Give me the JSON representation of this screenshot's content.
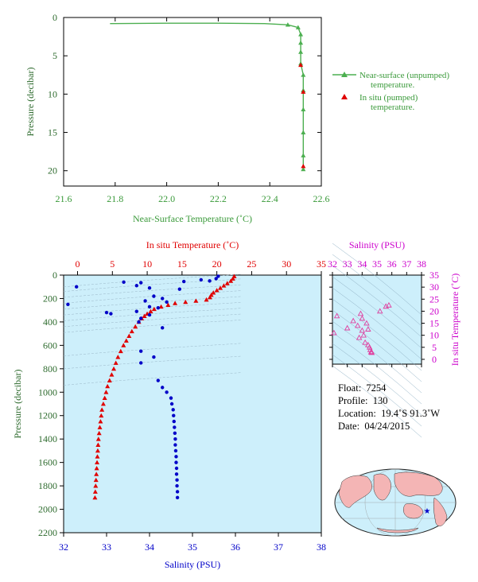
{
  "chart_data": [
    {
      "type": "line",
      "xlabel": "Near-Surface Temperature (˚C)",
      "ylabel": "Pressure (decibar)",
      "xlim": [
        21.6,
        22.6
      ],
      "ylim": [
        22,
        0
      ],
      "x_ticks": [
        "21.6",
        "21.8",
        "22.0",
        "22.2",
        "22.4",
        "22.6"
      ],
      "y_ticks": [
        "0",
        "5",
        "10",
        "15",
        "20"
      ],
      "grid": false,
      "legend_position": "right",
      "series": [
        {
          "name": "Near-surface (unpumped) temperature.",
          "color": "#4caf50",
          "marker": "triangle",
          "points": [
            [
              21.78,
              0.8
            ],
            [
              22.0,
              0.75
            ],
            [
              22.2,
              0.75
            ],
            [
              22.38,
              0.8
            ],
            [
              22.47,
              0.95
            ],
            [
              22.51,
              1.3
            ],
            [
              22.52,
              2.2
            ],
            [
              22.52,
              3.3
            ],
            [
              22.52,
              4.5
            ],
            [
              22.52,
              6.0
            ],
            [
              22.53,
              7.5
            ],
            [
              22.53,
              9.5
            ],
            [
              22.53,
              12.0
            ],
            [
              22.53,
              15.0
            ],
            [
              22.53,
              18.0
            ],
            [
              22.53,
              19.8
            ]
          ]
        },
        {
          "name": "In situ (pumped) temperature.",
          "color": "#e00000",
          "marker": "triangle",
          "points": [
            [
              22.52,
              6.2
            ],
            [
              22.53,
              9.7
            ],
            [
              22.53,
              19.4
            ]
          ]
        }
      ]
    },
    {
      "type": "scatter",
      "xlabel_top": "In situ Temperature (˚C)",
      "xlabel_bottom": "Salinity (PSU)",
      "ylabel": "Pressure (decibar)",
      "temp_lim": [
        -2,
        35
      ],
      "sal_lim": [
        32,
        38
      ],
      "ylim": [
        2200,
        0
      ],
      "temp_ticks": [
        "0",
        "5",
        "10",
        "15",
        "20",
        "25",
        "30",
        "35"
      ],
      "sal_ticks": [
        "32",
        "33",
        "34",
        "35",
        "36",
        "37",
        "38"
      ],
      "y_ticks": [
        "0",
        "200",
        "400",
        "600",
        "800",
        "1000",
        "1200",
        "1400",
        "1600",
        "1800",
        "2000",
        "2200"
      ],
      "temperature": {
        "color": "#e00000",
        "points": [
          [
            22.5,
            10
          ],
          [
            22.3,
            30
          ],
          [
            22.0,
            50
          ],
          [
            21.5,
            70
          ],
          [
            21.0,
            90
          ],
          [
            20.5,
            110
          ],
          [
            20.0,
            130
          ],
          [
            19.5,
            150
          ],
          [
            19.2,
            170
          ],
          [
            19.0,
            190
          ],
          [
            18.5,
            210
          ],
          [
            17.0,
            220
          ],
          [
            15.5,
            230
          ],
          [
            14.0,
            240
          ],
          [
            13.0,
            255
          ],
          [
            12.0,
            270
          ],
          [
            11.0,
            290
          ],
          [
            10.5,
            310
          ],
          [
            10.0,
            330
          ],
          [
            9.6,
            350
          ],
          [
            9.2,
            370
          ],
          [
            8.8,
            400
          ],
          [
            8.3,
            440
          ],
          [
            7.8,
            480
          ],
          [
            7.4,
            520
          ],
          [
            7.0,
            560
          ],
          [
            6.6,
            600
          ],
          [
            6.2,
            650
          ],
          [
            5.8,
            700
          ],
          [
            5.5,
            750
          ],
          [
            5.2,
            800
          ],
          [
            4.9,
            850
          ],
          [
            4.6,
            900
          ],
          [
            4.3,
            950
          ],
          [
            4.1,
            1000
          ],
          [
            3.9,
            1050
          ],
          [
            3.7,
            1100
          ],
          [
            3.5,
            1150
          ],
          [
            3.4,
            1200
          ],
          [
            3.3,
            1250
          ],
          [
            3.2,
            1300
          ],
          [
            3.1,
            1350
          ],
          [
            3.0,
            1400
          ],
          [
            2.95,
            1450
          ],
          [
            2.9,
            1500
          ],
          [
            2.85,
            1550
          ],
          [
            2.8,
            1600
          ],
          [
            2.75,
            1650
          ],
          [
            2.7,
            1700
          ],
          [
            2.65,
            1750
          ],
          [
            2.6,
            1800
          ],
          [
            2.55,
            1850
          ],
          [
            2.5,
            1900
          ]
        ]
      },
      "salinity": {
        "color": "#0000c8",
        "points": [
          [
            35.6,
            10
          ],
          [
            35.55,
            30
          ],
          [
            35.4,
            50
          ],
          [
            35.2,
            40
          ],
          [
            33.4,
            60
          ],
          [
            33.8,
            65
          ],
          [
            34.8,
            55
          ],
          [
            32.3,
            100
          ],
          [
            33.7,
            90
          ],
          [
            34.0,
            110
          ],
          [
            34.7,
            120
          ],
          [
            34.1,
            180
          ],
          [
            34.3,
            200
          ],
          [
            33.9,
            220
          ],
          [
            32.1,
            250
          ],
          [
            34.4,
            230
          ],
          [
            34.0,
            270
          ],
          [
            34.2,
            280
          ],
          [
            33.7,
            310
          ],
          [
            33.0,
            320
          ],
          [
            33.1,
            330
          ],
          [
            34.0,
            340
          ],
          [
            33.8,
            370
          ],
          [
            33.75,
            400
          ],
          [
            34.3,
            450
          ],
          [
            33.8,
            650
          ],
          [
            34.1,
            700
          ],
          [
            33.8,
            750
          ],
          [
            34.2,
            900
          ],
          [
            34.3,
            960
          ],
          [
            34.4,
            1000
          ],
          [
            34.5,
            1050
          ],
          [
            34.52,
            1100
          ],
          [
            34.55,
            1150
          ],
          [
            34.56,
            1200
          ],
          [
            34.57,
            1250
          ],
          [
            34.58,
            1300
          ],
          [
            34.59,
            1350
          ],
          [
            34.6,
            1400
          ],
          [
            34.6,
            1450
          ],
          [
            34.61,
            1500
          ],
          [
            34.62,
            1550
          ],
          [
            34.62,
            1600
          ],
          [
            34.63,
            1650
          ],
          [
            34.63,
            1700
          ],
          [
            34.64,
            1750
          ],
          [
            34.64,
            1800
          ],
          [
            34.65,
            1850
          ],
          [
            34.65,
            1900
          ]
        ]
      }
    },
    {
      "type": "scatter",
      "xlabel": "Salinity (PSU)",
      "ylabel": "In situ Temperature (˚C)",
      "xlim": [
        32,
        38
      ],
      "ylim": [
        -2,
        35
      ],
      "x_ticks": [
        "32",
        "33",
        "34",
        "35",
        "36",
        "37",
        "38"
      ],
      "y_ticks": [
        "0",
        "5",
        "10",
        "15",
        "20",
        "25",
        "30",
        "35"
      ],
      "color": "#e040a0",
      "points": [
        [
          32.1,
          11
        ],
        [
          32.3,
          18
        ],
        [
          33.0,
          13
        ],
        [
          33.4,
          16
        ],
        [
          33.7,
          14
        ],
        [
          33.8,
          9
        ],
        [
          33.9,
          19
        ],
        [
          34.0,
          12
        ],
        [
          34.1,
          10
        ],
        [
          34.2,
          7
        ],
        [
          34.3,
          15
        ],
        [
          34.4,
          6
        ],
        [
          34.5,
          5
        ],
        [
          34.55,
          4
        ],
        [
          34.6,
          3
        ],
        [
          34.62,
          3.2
        ],
        [
          34.65,
          2.8
        ],
        [
          35.2,
          20
        ],
        [
          35.6,
          22
        ],
        [
          35.8,
          22.5
        ],
        [
          34.0,
          17
        ],
        [
          34.4,
          12.5
        ]
      ]
    }
  ],
  "legend": {
    "near_surface_line1": "Near-surface (unpumped)",
    "near_surface_line2": "temperature.",
    "in_situ_line1": "In situ (pumped)",
    "in_situ_line2": "temperature."
  },
  "labels": {
    "top_xlabel": "Near-Surface Temperature (˚C)",
    "top_ylabel": "Pressure (decibar)",
    "main_top_xlabel": "In situ Temperature (˚C)",
    "main_bottom_xlabel": "Salinity (PSU)",
    "main_ylabel": "Pressure (decibar)",
    "ts_top_xlabel": "Salinity (PSU)",
    "ts_right_ylabel": "In situ Temperature (˚C)"
  },
  "info": {
    "float_label": "Float:",
    "float_value": "7254",
    "profile_label": "Profile:",
    "profile_value": "130",
    "location_label": "Location:",
    "location_value": "19.4˚S  91.3˚W",
    "date_label": "Date:",
    "date_value": "04/24/2015"
  },
  "colors": {
    "green": "#3a9a3a",
    "green_line": "#4caf50",
    "red": "#e00000",
    "blue": "#0000c8",
    "magenta": "#cc00cc",
    "plot_bg": "#cdeffb",
    "axis_green": "#2e6b2e"
  }
}
